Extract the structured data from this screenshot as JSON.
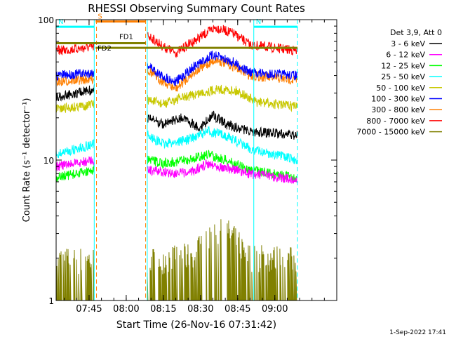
{
  "chart_data": {
    "type": "line",
    "title": "RHESSI Observing Summary Count Rates",
    "xlabel": "Start Time (26-Nov-16 07:31:42)",
    "ylabel": "Count Rate (s⁻¹ detector⁻¹)",
    "y_scale": "log",
    "ylim": [
      1,
      100
    ],
    "y_tick_labels": [
      "1",
      "10",
      "100"
    ],
    "x_range_minutes": [
      "07:31:42",
      "09:25:00"
    ],
    "x_tick_labels": [
      "07:45",
      "08:00",
      "08:15",
      "08:30",
      "08:45",
      "09:00"
    ],
    "legend_title": "Det 3,9, Att 0",
    "legend_position": "right",
    "timestamp": "1-Sep-2022 17:41",
    "data_gaps": [
      [
        "07:48:00",
        "08:08:30"
      ]
    ],
    "vertical_markers": [
      {
        "time": "07:47:05",
        "color": "#00ffff",
        "style": "solid"
      },
      {
        "time": "07:48:00",
        "color": "#ff7f00",
        "style": "dashed"
      },
      {
        "time": "08:07:50",
        "color": "#ff7f00",
        "style": "dashed"
      },
      {
        "time": "08:08:30",
        "color": "#00ffff",
        "style": "solid"
      },
      {
        "time": "08:51:30",
        "color": "#00ffff",
        "style": "solid"
      },
      {
        "time": "09:09:10",
        "color": "#00ffff",
        "style": "dashed"
      }
    ],
    "flag_bars": [
      {
        "label": "S",
        "color": "#ff7f00",
        "start": "07:47:40",
        "end": "08:07:50",
        "value": 97
      },
      {
        "label": "N",
        "color": "#00ffff",
        "start": "07:31:42",
        "end": "07:47:05",
        "value": 89
      },
      {
        "label": "N",
        "color": "#00ffff",
        "start": "08:51:30",
        "end": "09:09:10",
        "value": 89
      },
      {
        "label": "FD1",
        "color": "#808000",
        "start": "07:31:42",
        "end": "08:07:50",
        "value": 68
      },
      {
        "label": "FD2",
        "color": "#808000",
        "start": "07:47:40",
        "end": "09:09:10",
        "value": 63
      }
    ],
    "series": [
      {
        "name": "3 - 6 keV",
        "color": "#000000",
        "segments": [
          {
            "times": [
              "07:31:42",
              "07:40:00",
              "07:47:00"
            ],
            "values": [
              28,
              30,
              32
            ]
          },
          {
            "times": [
              "08:08:30",
              "08:15:00",
              "08:22:00",
              "08:30:00",
              "08:35:00",
              "08:40:00",
              "08:50:00",
              "09:09:00"
            ],
            "values": [
              20,
              18,
              20,
              17,
              21,
              18,
              16,
              15
            ]
          }
        ]
      },
      {
        "name": "6 - 12 keV",
        "color": "#ff00ff",
        "segments": [
          {
            "times": [
              "07:31:42",
              "07:40:00",
              "07:47:00"
            ],
            "values": [
              9,
              9.5,
              10
            ]
          },
          {
            "times": [
              "08:08:30",
              "08:15:00",
              "08:25:00",
              "08:33:00",
              "08:40:00",
              "08:50:00",
              "09:09:00"
            ],
            "values": [
              8.5,
              8.2,
              8.0,
              9.5,
              8.8,
              8.0,
              7.2
            ]
          }
        ]
      },
      {
        "name": "12 - 25 keV",
        "color": "#00ff00",
        "segments": [
          {
            "times": [
              "07:31:42",
              "07:40:00",
              "07:47:00"
            ],
            "values": [
              7.5,
              8,
              8.5
            ]
          },
          {
            "times": [
              "08:08:30",
              "08:15:00",
              "08:25:00",
              "08:33:00",
              "08:40:00",
              "08:50:00",
              "09:09:00"
            ],
            "values": [
              10,
              9.5,
              10,
              11,
              10,
              8.5,
              7.5
            ]
          }
        ]
      },
      {
        "name": "25 - 50 keV",
        "color": "#00ffff",
        "segments": [
          {
            "times": [
              "07:31:42",
              "07:40:00",
              "07:47:00"
            ],
            "values": [
              11,
              12,
              13
            ]
          },
          {
            "times": [
              "08:08:30",
              "08:15:00",
              "08:25:00",
              "08:33:00",
              "08:40:00",
              "08:50:00",
              "09:09:00"
            ],
            "values": [
              15,
              13,
              14,
              16,
              15,
              12,
              10
            ]
          }
        ]
      },
      {
        "name": "50 - 100 keV",
        "color": "#c8c800",
        "segments": [
          {
            "times": [
              "07:31:42",
              "07:40:00",
              "07:47:00"
            ],
            "values": [
              23,
              24,
              25
            ]
          },
          {
            "times": [
              "08:08:30",
              "08:15:00",
              "08:20:00",
              "08:30:00",
              "08:37:00",
              "08:45:00",
              "08:52:00",
              "09:09:00"
            ],
            "values": [
              27,
              25,
              27,
              30,
              32,
              31,
              26,
              24
            ]
          }
        ]
      },
      {
        "name": "100 - 300 keV",
        "color": "#0000ff",
        "segments": [
          {
            "times": [
              "07:31:42",
              "07:40:00",
              "07:47:00"
            ],
            "values": [
              40,
              41,
              42
            ]
          },
          {
            "times": [
              "08:08:30",
              "08:14:00",
              "08:20:00",
              "08:27:00",
              "08:35:00",
              "08:43:00",
              "08:50:00",
              "09:09:00"
            ],
            "values": [
              48,
              40,
              36,
              46,
              56,
              50,
              42,
              40
            ]
          }
        ]
      },
      {
        "name": "300 - 800 keV",
        "color": "#ff7f00",
        "segments": [
          {
            "times": [
              "07:31:42",
              "07:40:00",
              "07:47:00"
            ],
            "values": [
              36,
              37,
              38
            ]
          },
          {
            "times": [
              "08:08:30",
              "08:14:00",
              "08:20:00",
              "08:27:00",
              "08:36:00",
              "08:44:00",
              "08:50:00",
              "09:09:00"
            ],
            "values": [
              44,
              37,
              32,
              42,
              52,
              46,
              40,
              37
            ]
          }
        ]
      },
      {
        "name": "800 - 7000 keV",
        "color": "#ff0000",
        "segments": [
          {
            "times": [
              "07:31:42",
              "07:40:00",
              "07:47:00"
            ],
            "values": [
              60,
              62,
              64
            ]
          },
          {
            "times": [
              "08:08:30",
              "08:15:00",
              "08:20:00",
              "08:27:00",
              "08:36:00",
              "08:43:00",
              "08:50:00",
              "09:09:00"
            ],
            "values": [
              78,
              64,
              58,
              70,
              88,
              80,
              66,
              60
            ]
          }
        ]
      },
      {
        "name": "7000 - 15000 keV",
        "color": "#808000",
        "segments": [
          {
            "times": [
              "07:31:42",
              "07:47:00"
            ],
            "values": [
              1.5,
              1.5
            ]
          },
          {
            "times": [
              "08:08:30",
              "08:25:00",
              "08:40:00",
              "08:50:00",
              "09:09:00"
            ],
            "values": [
              1.5,
              1.6,
              2.5,
              1.6,
              1.5
            ]
          }
        ]
      }
    ]
  }
}
